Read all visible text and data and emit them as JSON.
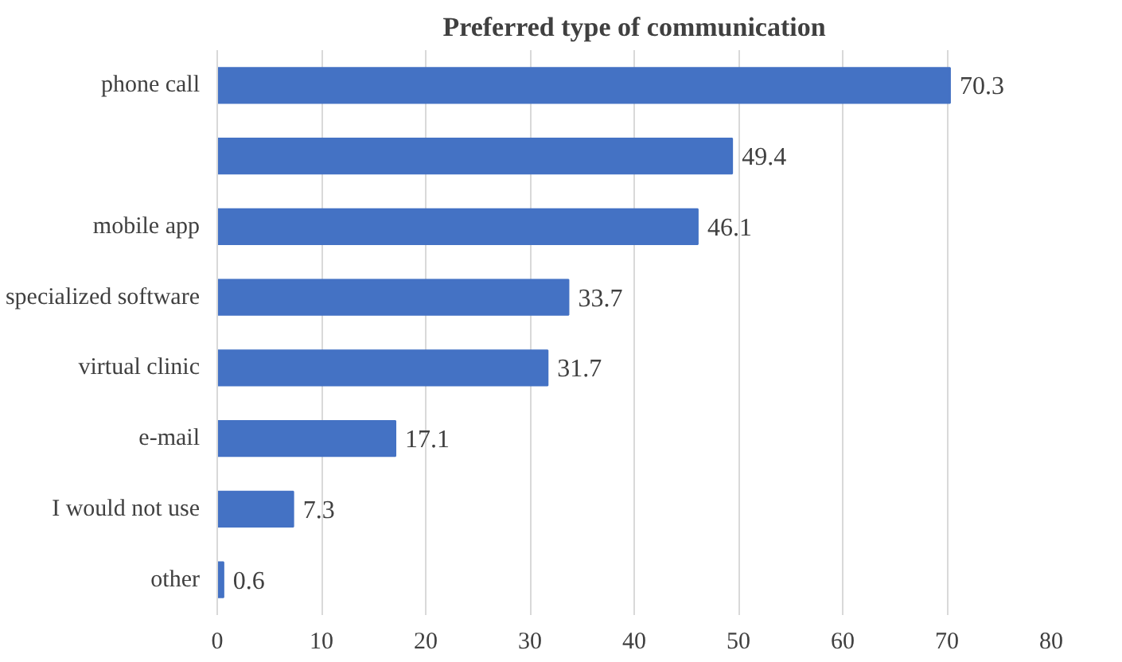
{
  "chart_data": {
    "type": "bar",
    "orientation": "horizontal",
    "title": "Preferred type of communication",
    "categories": [
      "phone call",
      null,
      "mobile app",
      "specialized software",
      "virtual clinic",
      "e-mail",
      "I would not use",
      "other"
    ],
    "values": [
      70.3,
      49.4,
      46.1,
      33.7,
      31.7,
      17.1,
      7.3,
      0.6
    ],
    "color": "#4472c4",
    "xlim": [
      0,
      80
    ],
    "xticks": [
      0,
      10,
      20,
      30,
      40,
      50,
      60,
      70,
      80
    ],
    "grid": "x",
    "data_labels": true
  }
}
